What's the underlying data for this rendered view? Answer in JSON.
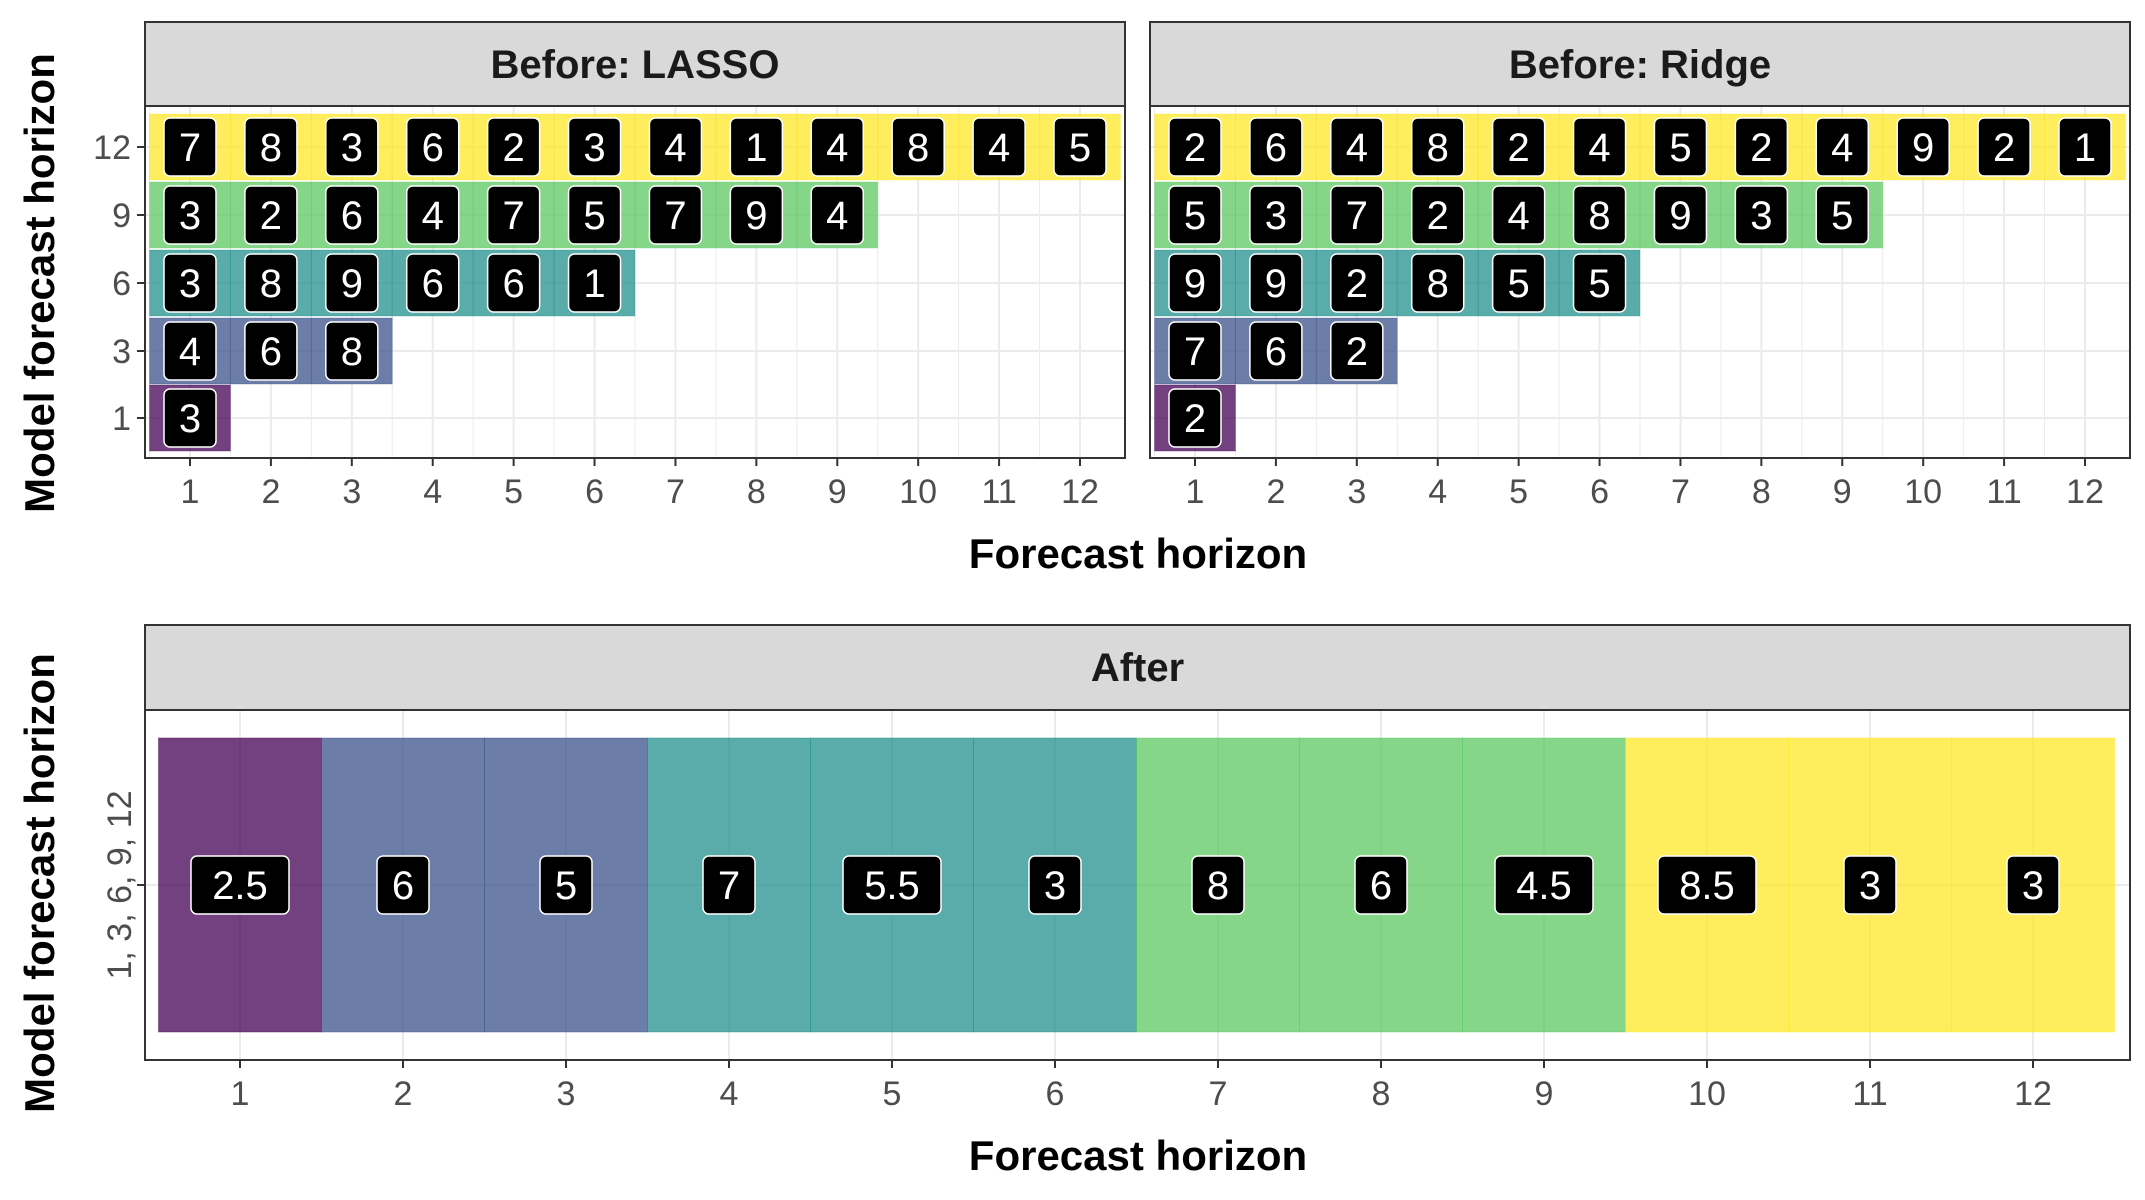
{
  "colors": {
    "h1": "#440154",
    "h3": "#3b528b",
    "h6": "#21908c",
    "h9": "#5dc863",
    "h12": "#fde725",
    "strip_bg": "#d9d9d9",
    "grid": "#ebebeb",
    "label_bg": "#000000",
    "label_text": "#ffffff"
  },
  "chart_data": [
    {
      "type": "heatmap",
      "title": "Before: LASSO",
      "xlabel": "Forecast horizon",
      "ylabel": "Model forecast horizon",
      "x_ticks": [
        "1",
        "2",
        "3",
        "4",
        "5",
        "6",
        "7",
        "8",
        "9",
        "10",
        "11",
        "12"
      ],
      "y_ticks": [
        "1",
        "3",
        "6",
        "9",
        "12"
      ],
      "rows": [
        {
          "model_horizon": "12",
          "values": [
            7,
            8,
            3,
            6,
            2,
            3,
            4,
            1,
            4,
            8,
            4,
            5
          ]
        },
        {
          "model_horizon": "9",
          "values": [
            3,
            2,
            6,
            4,
            7,
            5,
            7,
            9,
            4
          ]
        },
        {
          "model_horizon": "6",
          "values": [
            3,
            8,
            9,
            6,
            6,
            1
          ]
        },
        {
          "model_horizon": "3",
          "values": [
            4,
            6,
            8
          ]
        },
        {
          "model_horizon": "1",
          "values": [
            3
          ]
        }
      ]
    },
    {
      "type": "heatmap",
      "title": "Before: Ridge",
      "xlabel": "Forecast horizon",
      "ylabel": "Model forecast horizon",
      "x_ticks": [
        "1",
        "2",
        "3",
        "4",
        "5",
        "6",
        "7",
        "8",
        "9",
        "10",
        "11",
        "12"
      ],
      "y_ticks": [
        "1",
        "3",
        "6",
        "9",
        "12"
      ],
      "rows": [
        {
          "model_horizon": "12",
          "values": [
            2,
            6,
            4,
            8,
            2,
            4,
            5,
            2,
            4,
            9,
            2,
            1
          ]
        },
        {
          "model_horizon": "9",
          "values": [
            5,
            3,
            7,
            2,
            4,
            8,
            9,
            3,
            5
          ]
        },
        {
          "model_horizon": "6",
          "values": [
            9,
            9,
            2,
            8,
            5,
            5
          ]
        },
        {
          "model_horizon": "3",
          "values": [
            7,
            6,
            2
          ]
        },
        {
          "model_horizon": "1",
          "values": [
            2
          ]
        }
      ]
    },
    {
      "type": "heatmap",
      "title": "After",
      "xlabel": "Forecast horizon",
      "ylabel": "Model forecast horizon",
      "x_ticks": [
        "1",
        "2",
        "3",
        "4",
        "5",
        "6",
        "7",
        "8",
        "9",
        "10",
        "11",
        "12"
      ],
      "y_ticks": [
        "1, 3, 6, 9, 12"
      ],
      "values": [
        "2.5",
        "6",
        "5",
        "7",
        "5.5",
        "3",
        "8",
        "6",
        "4.5",
        "8.5",
        "3",
        "3"
      ],
      "fill_model_horizon": [
        "1",
        "3",
        "3",
        "6",
        "6",
        "6",
        "9",
        "9",
        "9",
        "12",
        "12",
        "12"
      ]
    }
  ],
  "shared_xlabel_top": "Forecast horizon",
  "ylabel_top": "Model forecast horizon",
  "ylabel_bottom": "Model forecast horizon"
}
